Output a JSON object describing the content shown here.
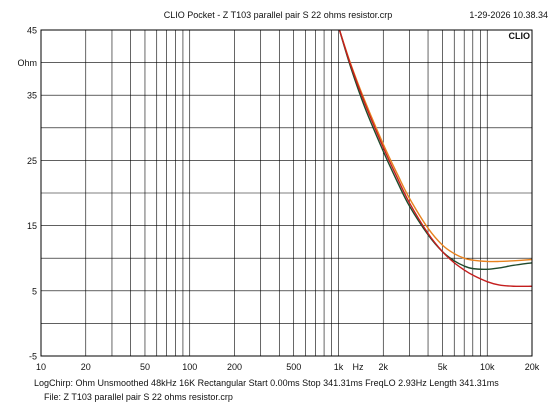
{
  "header": {
    "title": "CLIO Pocket - Z  T103 parallel pair  S   22 ohms resistor.crp",
    "datetime": "1-29-2026 10.38.34",
    "logo": "CLIO"
  },
  "footer": {
    "line1": "LogChirp:  Ohm   Unsmoothed   48kHz   16K   Rectangular   Start 0.00ms     Stop 341.31ms    FreqLO 2.93Hz    Length 341.31ms",
    "line2": "File: Z  T103 parallel pair  S   22 ohms resistor.crp"
  },
  "chart_data": {
    "type": "line",
    "title": "CLIO Pocket - Z  T103 parallel pair  S   22 ohms resistor.crp",
    "xlabel": "Hz",
    "ylabel": "Ohm",
    "x_scale": "log",
    "xlim": [
      10,
      20000
    ],
    "ylim": [
      -5,
      45
    ],
    "grid": true,
    "x_tick_labels": [
      {
        "value": 10,
        "label": "10"
      },
      {
        "value": 20,
        "label": "20"
      },
      {
        "value": 50,
        "label": "50"
      },
      {
        "value": 100,
        "label": "100"
      },
      {
        "value": 200,
        "label": "200"
      },
      {
        "value": 500,
        "label": "500"
      },
      {
        "value": 1000,
        "label": "1k"
      },
      {
        "value": 2000,
        "label": "2k"
      },
      {
        "value": 5000,
        "label": "5k"
      },
      {
        "value": 10000,
        "label": "10k"
      },
      {
        "value": 20000,
        "label": "20k"
      }
    ],
    "y_tick_labels": [
      {
        "value": 45,
        "label": "45"
      },
      {
        "value": 40,
        "label": "Ohm"
      },
      {
        "value": 35,
        "label": "35"
      },
      {
        "value": 25,
        "label": "25"
      },
      {
        "value": 15,
        "label": "15"
      },
      {
        "value": 5,
        "label": "5"
      },
      {
        "value": -5,
        "label": "-5"
      }
    ],
    "y_grid": [
      45,
      40,
      35,
      30,
      25,
      20,
      15,
      10,
      5,
      0,
      -5
    ],
    "series": [
      {
        "color": "#e8821e",
        "x": [
          1000,
          1200,
          1500,
          2000,
          2500,
          3000,
          4000,
          5000,
          6000,
          7000,
          8000,
          10000,
          12000,
          15000,
          20000
        ],
        "y": [
          45.5,
          40.0,
          34.2,
          27.5,
          22.8,
          19.2,
          14.6,
          12.0,
          10.7,
          10.0,
          9.7,
          9.5,
          9.5,
          9.6,
          9.8
        ]
      },
      {
        "color": "#1f4a2c",
        "x": [
          1000,
          1200,
          1500,
          2000,
          2500,
          3000,
          4000,
          5000,
          6000,
          7000,
          8000,
          10000,
          12000,
          15000,
          20000
        ],
        "y": [
          45.5,
          39.5,
          33.2,
          26.4,
          21.6,
          18.0,
          13.6,
          11.0,
          9.6,
          8.8,
          8.4,
          8.3,
          8.5,
          8.9,
          9.3
        ]
      },
      {
        "color": "#c41e1e",
        "x": [
          1000,
          1200,
          1500,
          2000,
          2500,
          3000,
          4000,
          5000,
          6000,
          7000,
          8000,
          10000,
          12000,
          15000,
          20000
        ],
        "y": [
          45.5,
          39.8,
          33.8,
          27.0,
          22.2,
          18.5,
          13.8,
          11.0,
          9.3,
          8.2,
          7.4,
          6.4,
          5.9,
          5.7,
          5.7
        ]
      }
    ]
  }
}
